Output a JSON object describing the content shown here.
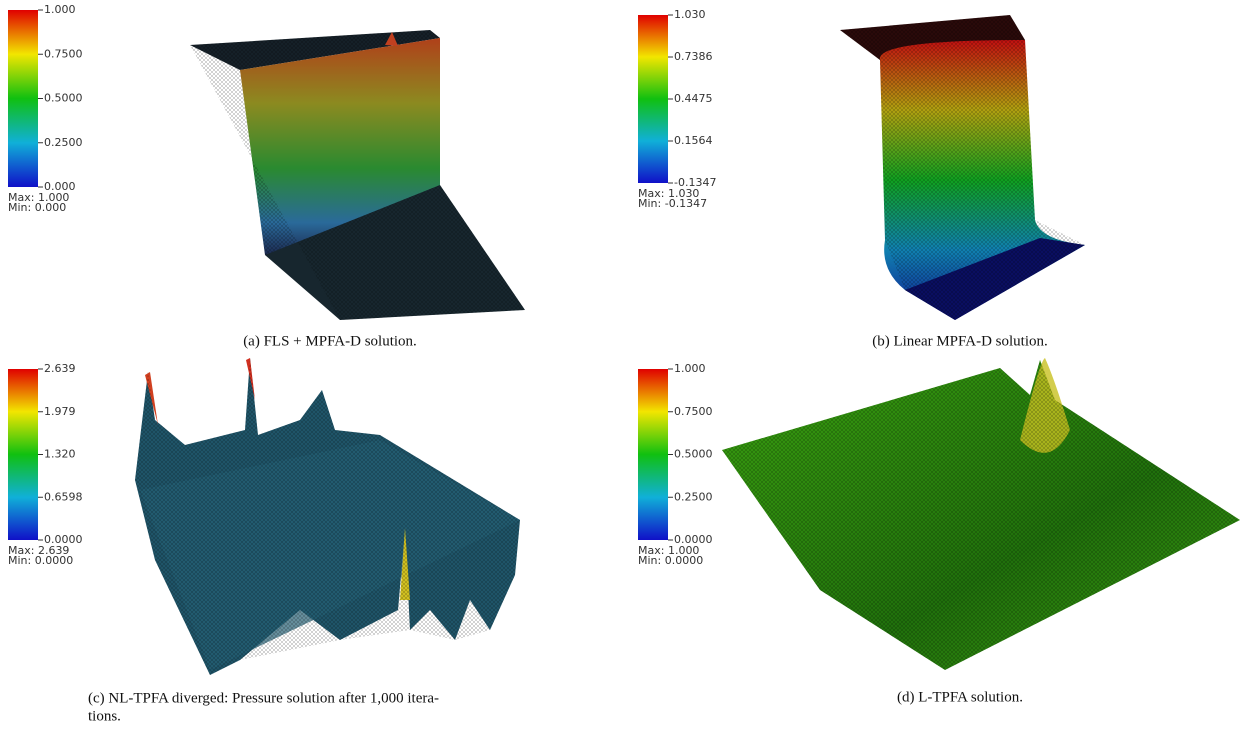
{
  "panels": [
    {
      "colorbar": {
        "ticks": [
          "1.000",
          "0.7500",
          "0.5000",
          "0.2500",
          "0.000"
        ],
        "max": "Max:  1.000",
        "min": "Min:  0.000"
      },
      "caption": [
        "(a) FLS + MPFA-D solution."
      ]
    },
    {
      "colorbar": {
        "ticks": [
          "1.030",
          "0.7386",
          "0.4475",
          "0.1564",
          "-0.1347"
        ],
        "max": "Max:  1.030",
        "min": "Min:  -0.1347"
      },
      "caption": [
        "(b) Linear MPFA-D solution."
      ]
    },
    {
      "colorbar": {
        "ticks": [
          "2.639",
          "1.979",
          "1.320",
          "0.6598",
          "0.0000"
        ],
        "max": "Max:  2.639",
        "min": "Min:  0.0000"
      },
      "caption": [
        "(c) NL-TPFA diverged:  Pressure solution after 1,000 itera-",
        "tions."
      ]
    },
    {
      "colorbar": {
        "ticks": [
          "1.000",
          "0.7500",
          "0.5000",
          "0.2500",
          "0.0000"
        ],
        "max": "Max:  1.000",
        "min": "Min:  0.0000"
      },
      "caption": [
        "(d) L-TPFA solution."
      ]
    }
  ]
}
